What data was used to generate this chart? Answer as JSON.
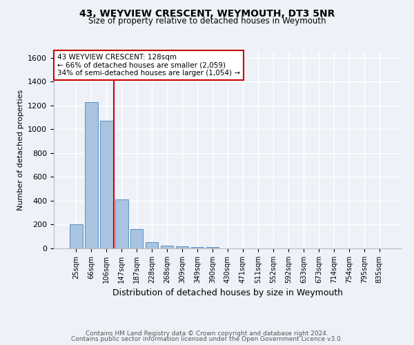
{
  "title": "43, WEYVIEW CRESCENT, WEYMOUTH, DT3 5NR",
  "subtitle": "Size of property relative to detached houses in Weymouth",
  "xlabel": "Distribution of detached houses by size in Weymouth",
  "ylabel": "Number of detached properties",
  "categories": [
    "25sqm",
    "66sqm",
    "106sqm",
    "147sqm",
    "187sqm",
    "228sqm",
    "268sqm",
    "309sqm",
    "349sqm",
    "390sqm",
    "430sqm",
    "471sqm",
    "511sqm",
    "552sqm",
    "592sqm",
    "633sqm",
    "673sqm",
    "714sqm",
    "754sqm",
    "795sqm",
    "835sqm"
  ],
  "values": [
    200,
    1225,
    1070,
    410,
    165,
    50,
    25,
    20,
    12,
    10,
    0,
    0,
    0,
    0,
    0,
    0,
    0,
    0,
    0,
    0,
    0
  ],
  "bar_color": "#a8c4e0",
  "bar_edge_color": "#5a8fc0",
  "vline_x": 2.5,
  "vline_color": "#cc0000",
  "annotation_line1": "43 WEYVIEW CRESCENT: 128sqm",
  "annotation_line2": "← 66% of detached houses are smaller (2,059)",
  "annotation_line3": "34% of semi-detached houses are larger (1,054) →",
  "annotation_box_color": "#ffffff",
  "annotation_box_edge": "#cc0000",
  "ylim": [
    0,
    1650
  ],
  "yticks": [
    0,
    200,
    400,
    600,
    800,
    1000,
    1200,
    1400,
    1600
  ],
  "background_color": "#eef2f8",
  "grid_color": "#ffffff",
  "footer_line1": "Contains HM Land Registry data © Crown copyright and database right 2024.",
  "footer_line2": "Contains public sector information licensed under the Open Government Licence v3.0."
}
